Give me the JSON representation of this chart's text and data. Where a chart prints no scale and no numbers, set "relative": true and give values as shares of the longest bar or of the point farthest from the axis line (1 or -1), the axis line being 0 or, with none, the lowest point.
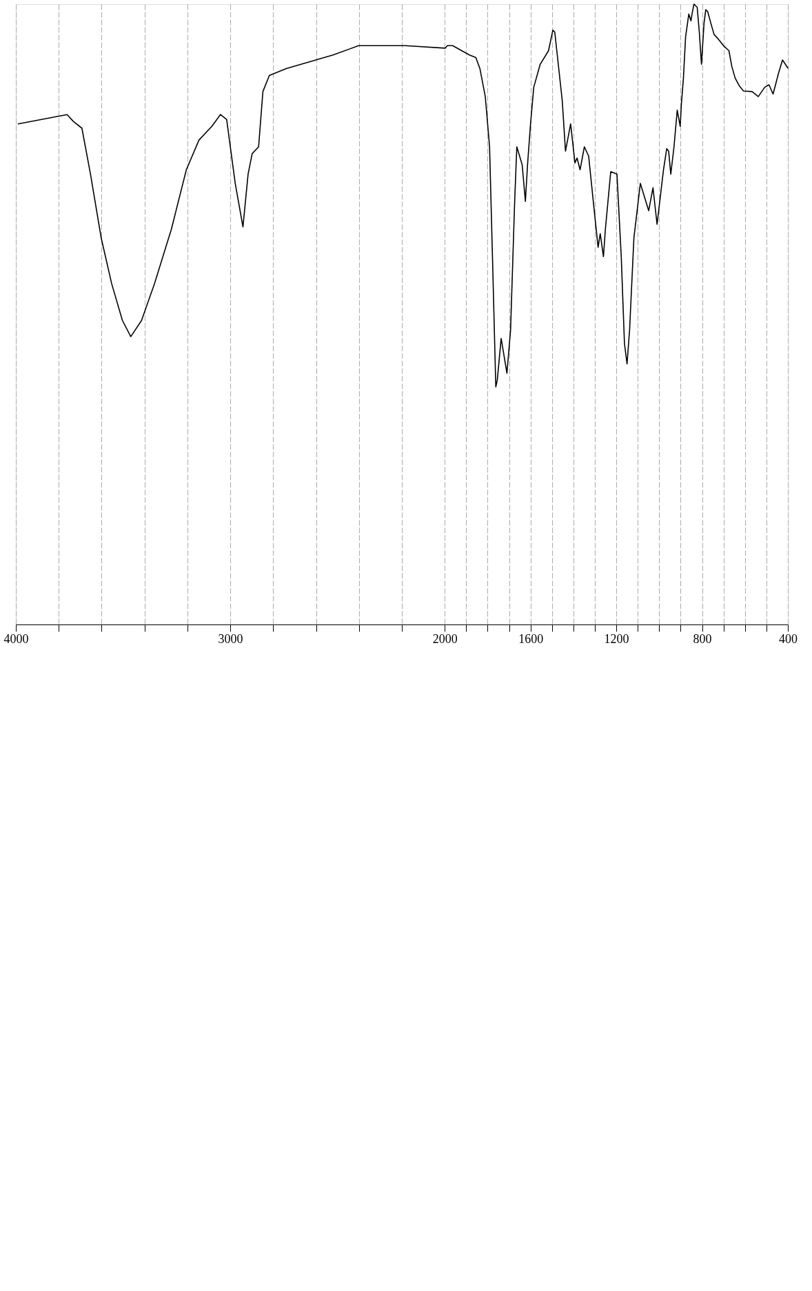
{
  "chart_data": {
    "type": "line",
    "relative": true,
    "xlim": [
      4000,
      400
    ],
    "xticks": [
      400,
      {
        "value": 500,
        "label": null
      },
      {
        "value": 600,
        "label": null
      },
      {
        "value": 700,
        "label": null
      },
      800,
      {
        "value": 900,
        "label": null
      },
      {
        "value": 1000,
        "label": null
      },
      {
        "value": 1100,
        "label": null
      },
      1200,
      {
        "value": 1300,
        "label": null
      },
      {
        "value": 1400,
        "label": null
      },
      {
        "value": 1500,
        "label": null
      },
      1600,
      {
        "value": 1700,
        "label": null
      },
      {
        "value": 1800,
        "label": null
      },
      {
        "value": 1900,
        "label": null
      },
      2000,
      {
        "value": 2200,
        "label": null
      },
      {
        "value": 2400,
        "label": null
      },
      {
        "value": 2600,
        "label": null
      },
      {
        "value": 2800,
        "label": null
      },
      3000,
      {
        "value": 3200,
        "label": null
      },
      {
        "value": 3400,
        "label": null
      },
      {
        "value": 3600,
        "label": null
      },
      {
        "value": 3800,
        "label": null
      },
      4000
    ],
    "grid": "x",
    "line_style": "solid",
    "x": [
      400,
      425,
      444,
      469,
      488,
      508,
      538,
      567,
      607,
      626,
      646,
      661,
      675,
      700,
      725,
      744,
      759,
      774,
      783,
      791,
      803,
      813,
      823,
      838,
      847,
      852,
      862,
      877,
      887,
      897,
      902,
      916,
      931,
      946,
      956,
      965,
      980,
      1010,
      1029,
      1049,
      1088,
      1118,
      1138,
      1150,
      1162,
      1177,
      1197,
      1226,
      1251,
      1260,
      1275,
      1285,
      1305,
      1329,
      1349,
      1369,
      1383,
      1393,
      1413,
      1437,
      1452,
      1487,
      1496,
      1516,
      1555,
      1585,
      1600,
      1614,
      1624,
      1639,
      1664,
      1674,
      1693,
      1710,
      1737,
      1755,
      1762,
      1777,
      1791,
      1811,
      1836,
      1855,
      1885,
      1963,
      1988,
      1998,
      2184,
      2402,
      2521,
      2739,
      2818,
      2848,
      2868,
      2898,
      2917,
      2941,
      2977,
      3017,
      3046,
      3086,
      3146,
      3205,
      3275,
      3354,
      3414,
      3464,
      3503,
      3553,
      3602,
      3652,
      3692,
      3732,
      3761,
      3989
    ],
    "series": [
      {
        "color": "#000000",
        "values": [
          0.897,
          0.91,
          0.888,
          0.855,
          0.87,
          0.866,
          0.851,
          0.859,
          0.86,
          0.868,
          0.881,
          0.899,
          0.925,
          0.933,
          0.944,
          0.951,
          0.969,
          0.988,
          0.991,
          0.969,
          0.903,
          0.955,
          0.995,
          1,
          0.984,
          0.973,
          0.984,
          0.947,
          0.881,
          0.837,
          0.803,
          0.829,
          0.77,
          0.726,
          0.763,
          0.767,
          0.733,
          0.645,
          0.704,
          0.667,
          0.711,
          0.623,
          0.475,
          0.42,
          0.453,
          0.593,
          0.726,
          0.73,
          0.637,
          0.593,
          0.63,
          0.608,
          0.674,
          0.755,
          0.77,
          0.733,
          0.752,
          0.744,
          0.807,
          0.763,
          0.844,
          0.955,
          0.958,
          0.925,
          0.903,
          0.866,
          0.807,
          0.741,
          0.682,
          0.741,
          0.77,
          0.682,
          0.475,
          0.405,
          0.461,
          0.394,
          0.383,
          0.586,
          0.77,
          0.851,
          0.896,
          0.914,
          0.918,
          0.933,
          0.933,
          0.929,
          0.933,
          0.933,
          0.918,
          0.896,
          0.885,
          0.859,
          0.77,
          0.759,
          0.726,
          0.641,
          0.711,
          0.814,
          0.822,
          0.803,
          0.781,
          0.733,
          0.637,
          0.549,
          0.49,
          0.464,
          0.49,
          0.549,
          0.623,
          0.726,
          0.8,
          0.811,
          0.822,
          0.807
        ]
      }
    ]
  }
}
